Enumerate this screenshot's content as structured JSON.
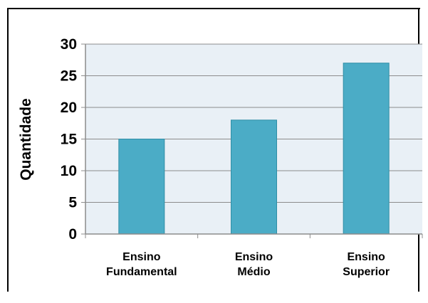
{
  "chart_data": {
    "type": "bar",
    "categories": [
      [
        "Ensino",
        "Fundamental"
      ],
      [
        "Ensino",
        "Médio"
      ],
      [
        "Ensino",
        "Superior"
      ]
    ],
    "values": [
      15,
      18,
      27
    ],
    "title": "",
    "xlabel": "",
    "ylabel": "Quantidade",
    "ylim": [
      0,
      30
    ],
    "yticks": [
      0,
      5,
      10,
      15,
      20,
      25,
      30
    ],
    "grid": true,
    "legend": "none",
    "colors": {
      "bar": "#4bacc6",
      "bar_edge": "#2f8ea6",
      "plot_bg": "#e9f0f6",
      "grid": "#8c8c8c",
      "axis": "#8c8c8c",
      "text": "#000000"
    }
  }
}
